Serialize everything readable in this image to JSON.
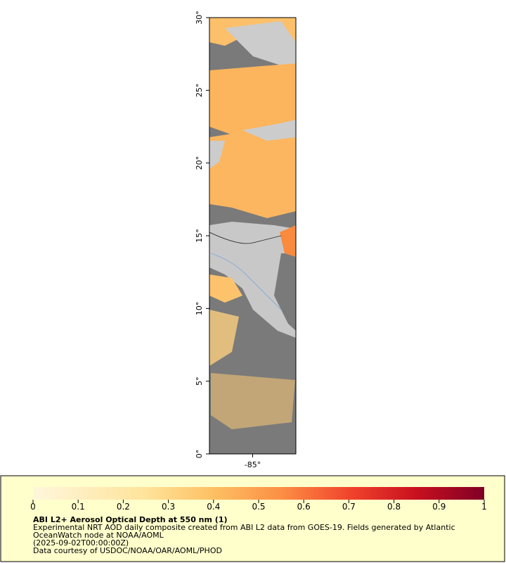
{
  "map": {
    "xlim": [
      -88,
      -82
    ],
    "ylim": [
      0,
      30
    ],
    "xticks": [
      {
        "value": -85,
        "label": "-85°"
      }
    ],
    "yticks": [
      {
        "value": 0,
        "label": "0°"
      },
      {
        "value": 5,
        "label": "5°"
      },
      {
        "value": 10,
        "label": "10°"
      },
      {
        "value": 15,
        "label": "15°"
      },
      {
        "value": 20,
        "label": "20°"
      },
      {
        "value": 25,
        "label": "25°"
      },
      {
        "value": 30,
        "label": "30°"
      }
    ]
  },
  "colorbar": {
    "lim": [
      0,
      1
    ],
    "ticks": [
      0,
      0.1,
      0.2,
      0.3,
      0.4,
      0.5,
      0.6,
      0.7,
      0.8,
      0.9,
      1
    ]
  },
  "legend": {
    "title": "ABI L2+ Aerosol Optical Depth at 550 nm (1)",
    "lines": [
      "Experimental NRT AOD daily composite created from ABI L2 data from GOES-19. Fields generated by Atlantic",
      "OceanWatch node at NOAA/AOML",
      "(2025-09-02T00:00:00Z)",
      "Data courtesy of USDOC/NOAA/OAR/AOML/PHOD"
    ]
  }
}
